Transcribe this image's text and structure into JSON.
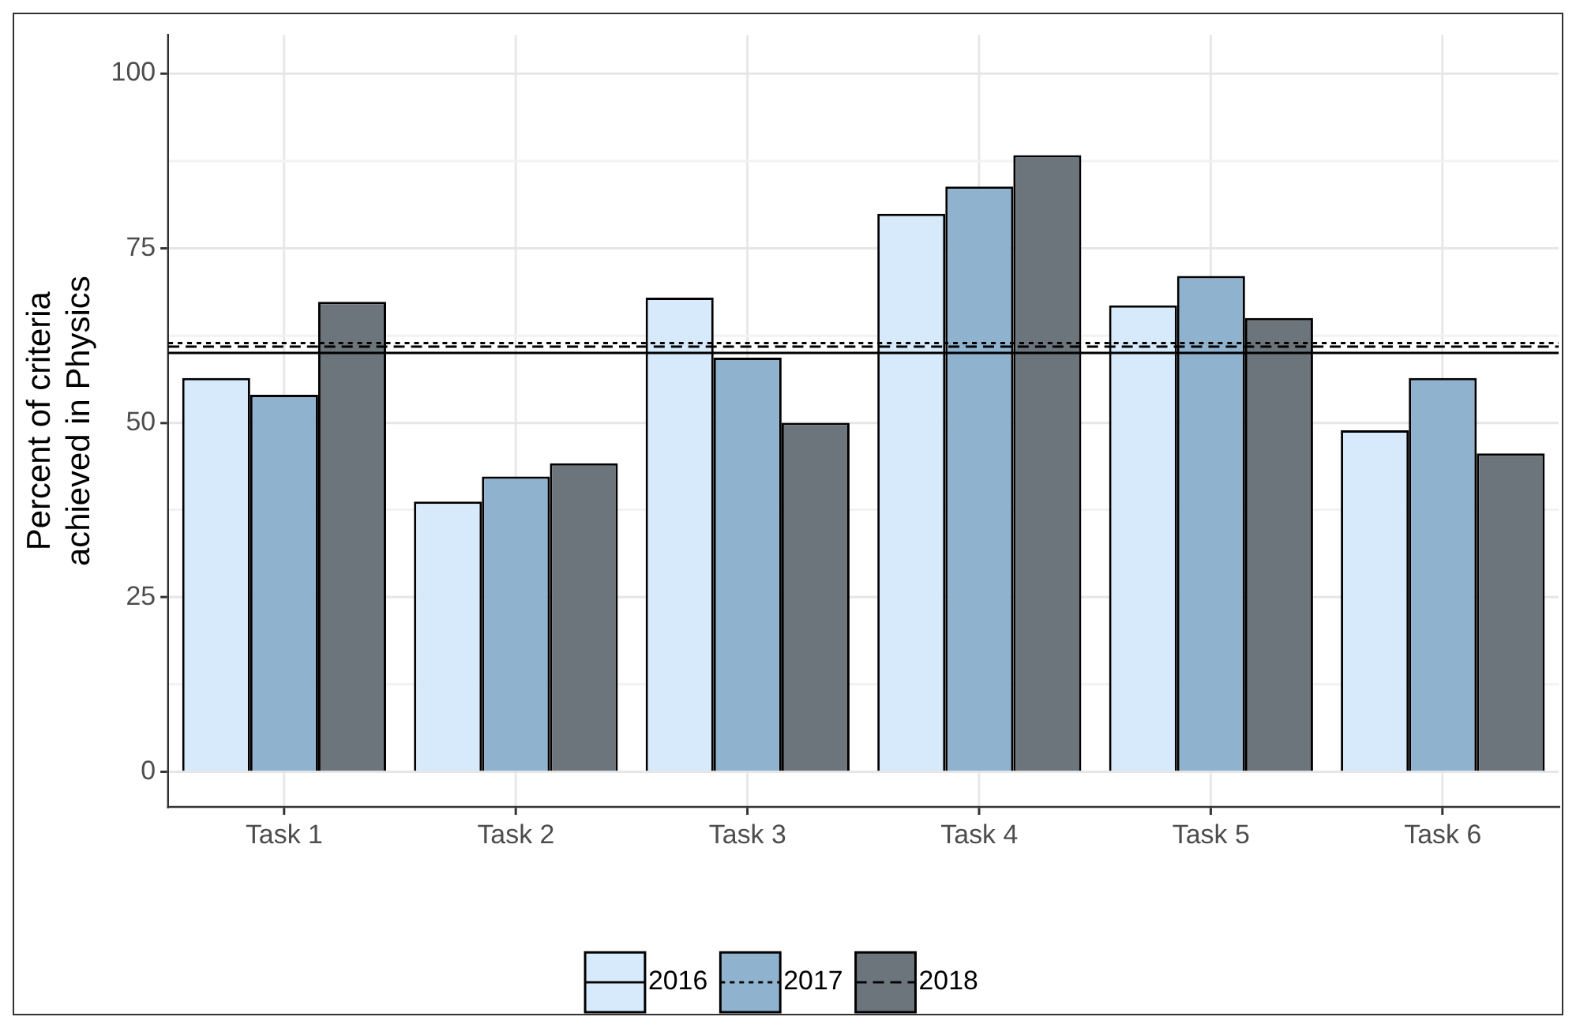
{
  "chart_data": {
    "type": "bar",
    "ylabel": "Percent of criteria\nachieved in Physics",
    "categories": [
      "Task 1",
      "Task 2",
      "Task 3",
      "Task 4",
      "Task 5",
      "Task 6"
    ],
    "series": [
      {
        "name": "2016",
        "color": "#d6eafc",
        "values": [
          56.4,
          38.7,
          67.9,
          79.9,
          66.8,
          48.9
        ]
      },
      {
        "name": "2017",
        "color": "#8fb3cf",
        "values": [
          54,
          42.3,
          59.3,
          83.8,
          71,
          56.4
        ]
      },
      {
        "name": "2018",
        "color": "#6c757c",
        "values": [
          67.3,
          44.2,
          50,
          88.3,
          65,
          45.6
        ]
      }
    ],
    "ref_lines": [
      {
        "axis": "y",
        "value": 60,
        "color": "#000000",
        "line_style": "solid"
      },
      {
        "axis": "y",
        "value": 61.4,
        "color": "#000000",
        "line_style": "dotted"
      },
      {
        "axis": "y",
        "value": 60.9,
        "color": "#000000",
        "line_style": "dashed"
      }
    ],
    "ylim": [
      -5,
      105.5
    ],
    "yticks": [
      0,
      {
        "value": 12.5,
        "label": null
      },
      25,
      {
        "value": 37.5,
        "label": null
      },
      50,
      {
        "value": 62.5,
        "label": null
      },
      75,
      {
        "value": 87.5,
        "label": null
      },
      100
    ],
    "grid": true,
    "legend": "bottom"
  }
}
